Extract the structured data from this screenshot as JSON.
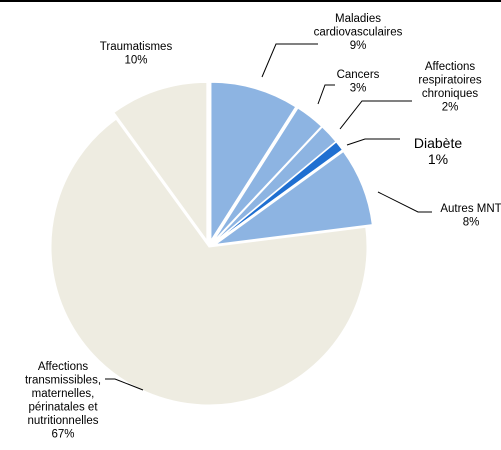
{
  "chart_data": {
    "type": "pie",
    "title": "",
    "slices": [
      {
        "label": [
          "Maladies",
          "cardiovasculaires"
        ],
        "value": 9,
        "value_label": "9%",
        "color": "#8db4e2",
        "exploded": true
      },
      {
        "label": [
          "Cancers"
        ],
        "value": 3,
        "value_label": "3%",
        "color": "#8db4e2",
        "exploded": true
      },
      {
        "label": [
          "Affections",
          "respiratoires",
          "chroniques"
        ],
        "value": 2,
        "value_label": "2%",
        "color": "#8db4e2",
        "exploded": true
      },
      {
        "label": [
          "Diabète"
        ],
        "value": 1,
        "value_label": "1%",
        "color": "#1f6fd1",
        "exploded": true
      },
      {
        "label": [
          "Autres MNT"
        ],
        "value": 8,
        "value_label": "8%",
        "color": "#8db4e2",
        "exploded": true
      },
      {
        "label": [
          "Affections",
          "transmissibles,",
          "maternelles,",
          "périnatales et",
          "nutritionnelles"
        ],
        "value": 67,
        "value_label": "67%",
        "color": "#eeece1",
        "exploded": false
      },
      {
        "label": [
          "Traumatismes"
        ],
        "value": 10,
        "value_label": "10%",
        "color": "#eeece1",
        "exploded": true
      }
    ]
  }
}
